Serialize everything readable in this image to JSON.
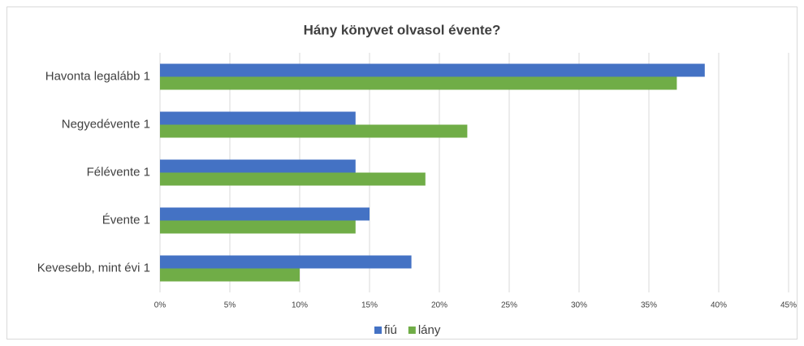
{
  "chart_data": {
    "type": "bar",
    "orientation": "horizontal",
    "title": "Hány könyvet olvasol évente?",
    "categories": [
      "Havonta legalább 1",
      "Negyedévente 1",
      "Félévente 1",
      "Évente 1",
      "Kevesebb, mint évi 1"
    ],
    "series": [
      {
        "name": "fiú",
        "color": "#4472c4",
        "values": [
          39,
          14,
          14,
          15,
          18
        ]
      },
      {
        "name": "lány",
        "color": "#70ad47",
        "values": [
          37,
          22,
          19,
          14,
          10
        ]
      }
    ],
    "xlim": [
      0,
      45
    ],
    "xticks": [
      {
        "value": 0,
        "label": "0%"
      },
      {
        "value": 5,
        "label": "5%"
      },
      {
        "value": 10,
        "label": "10%"
      },
      {
        "value": 15,
        "label": "15%"
      },
      {
        "value": 20,
        "label": "20%"
      },
      {
        "value": 25,
        "label": "25%"
      },
      {
        "value": 30,
        "label": "30%"
      },
      {
        "value": 35,
        "label": "35%"
      },
      {
        "value": 40,
        "label": "40%"
      },
      {
        "value": 45,
        "label": "45%"
      }
    ],
    "grid": true,
    "legend": "bottom"
  }
}
